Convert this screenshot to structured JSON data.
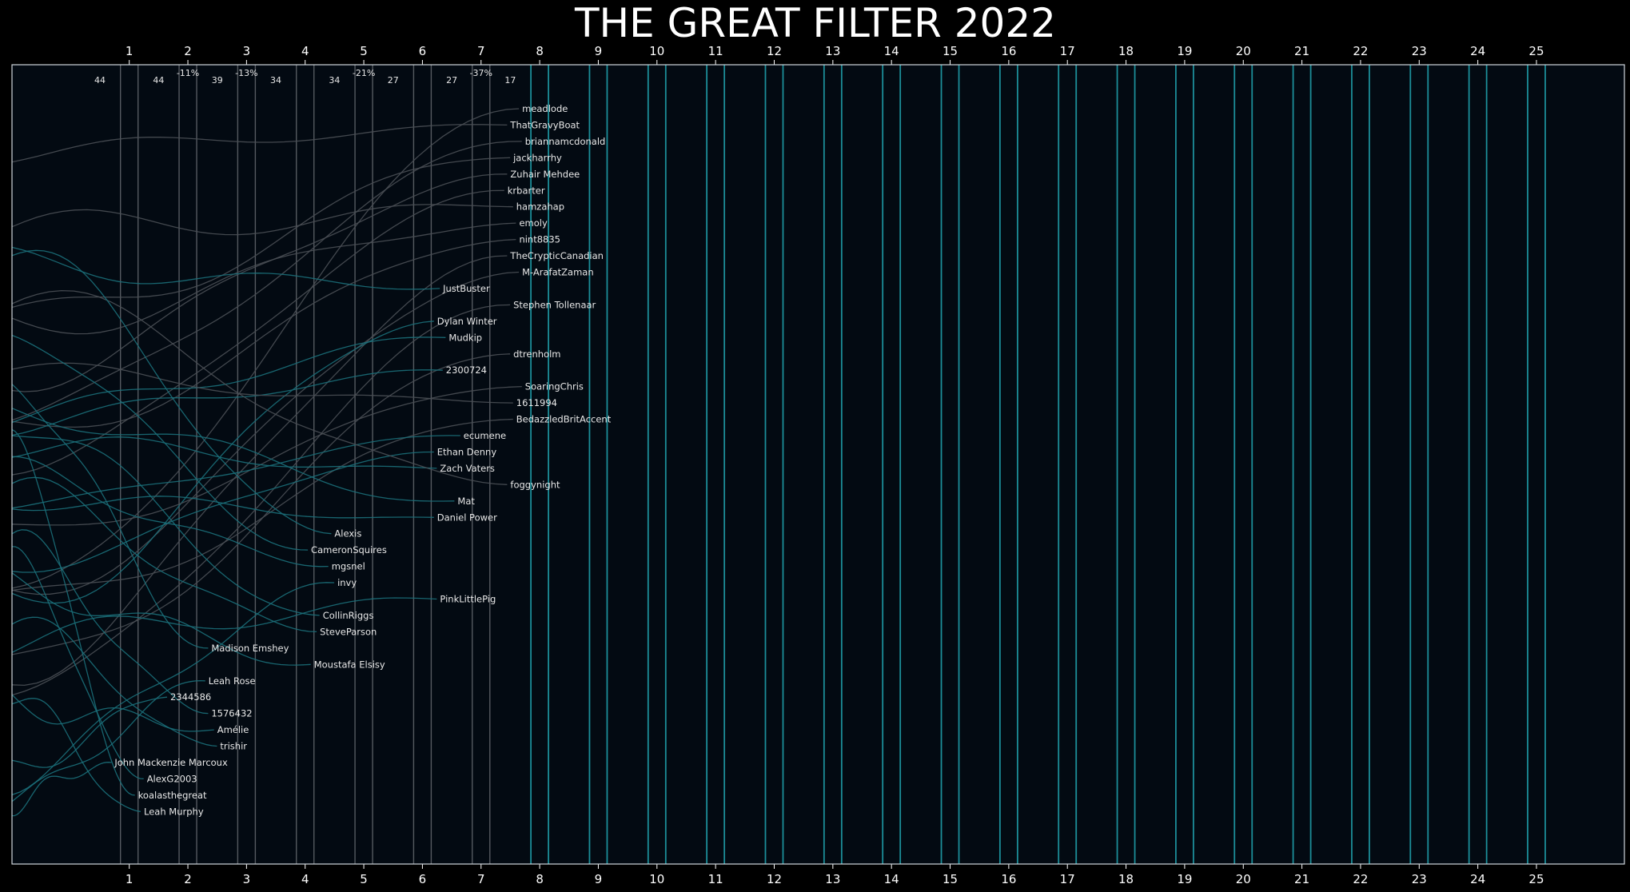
{
  "chart_data": {
    "type": "line",
    "title": "THE GREAT FILTER 2022",
    "xlabel": "",
    "ylabel": "",
    "x_ticks": [
      1,
      2,
      3,
      4,
      5,
      6,
      7,
      8,
      9,
      10,
      11,
      12,
      13,
      14,
      15,
      16,
      17,
      18,
      19,
      20,
      21,
      22,
      23,
      24,
      25
    ],
    "xlim": [
      -1,
      26.5
    ],
    "grid": false,
    "legend": "none",
    "colors": {
      "background": "#000000",
      "plot_background": "#030a12",
      "frame": "#cfd6dc",
      "filled_band_line": "#1c8e99",
      "empty_band_line": "#555a60",
      "strand_active": "#1b6f7a",
      "strand_eliminated": "#4a4f55",
      "label_text": "#e8e8e8"
    },
    "counts": [
      {
        "x": 0.5,
        "label": "44"
      },
      {
        "x": 1.5,
        "label": "44"
      },
      {
        "x": 2.0,
        "label": "-11%"
      },
      {
        "x": 2.5,
        "label": "39"
      },
      {
        "x": 3.0,
        "label": "-13%"
      },
      {
        "x": 3.5,
        "label": "34"
      },
      {
        "x": 4.5,
        "label": "34"
      },
      {
        "x": 5.0,
        "label": "-21%"
      },
      {
        "x": 5.5,
        "label": "27"
      },
      {
        "x": 6.5,
        "label": "27"
      },
      {
        "x": 7.0,
        "label": "-37%"
      },
      {
        "x": 7.5,
        "label": "17"
      }
    ],
    "series": [
      {
        "name": "meadlode",
        "x": 7.7,
        "rank": 1
      },
      {
        "name": "ThatGravyBoat",
        "x": 7.5,
        "rank": 2
      },
      {
        "name": "briannamcdonald",
        "x": 7.75,
        "rank": 3
      },
      {
        "name": "jackharrhy",
        "x": 7.55,
        "rank": 4
      },
      {
        "name": "Zuhair Mehdee",
        "x": 7.5,
        "rank": 5
      },
      {
        "name": "krbarter",
        "x": 7.45,
        "rank": 6
      },
      {
        "name": "hamzahap",
        "x": 7.6,
        "rank": 7
      },
      {
        "name": "emoly",
        "x": 7.65,
        "rank": 8
      },
      {
        "name": "nint8835",
        "x": 7.65,
        "rank": 9
      },
      {
        "name": "TheCrypticCanadian",
        "x": 7.5,
        "rank": 10
      },
      {
        "name": "M-ArafatZaman",
        "x": 7.7,
        "rank": 11
      },
      {
        "name": "JustBuster",
        "x": 6.35,
        "rank": 12
      },
      {
        "name": "Stephen Tollenaar",
        "x": 7.55,
        "rank": 13
      },
      {
        "name": "Dylan Winter",
        "x": 6.25,
        "rank": 14
      },
      {
        "name": "Mudkip",
        "x": 6.45,
        "rank": 15
      },
      {
        "name": "dtrenholm",
        "x": 7.55,
        "rank": 16
      },
      {
        "name": "2300724",
        "x": 6.4,
        "rank": 17
      },
      {
        "name": "SoaringChris",
        "x": 7.75,
        "rank": 18
      },
      {
        "name": "1611994",
        "x": 7.6,
        "rank": 19
      },
      {
        "name": "BedazzledBritAccent",
        "x": 7.6,
        "rank": 20
      },
      {
        "name": "ecumene",
        "x": 6.7,
        "rank": 21
      },
      {
        "name": "Ethan Denny",
        "x": 6.25,
        "rank": 22
      },
      {
        "name": "Zach Vaters",
        "x": 6.3,
        "rank": 23
      },
      {
        "name": "foggynight",
        "x": 7.5,
        "rank": 24
      },
      {
        "name": "Mat",
        "x": 6.6,
        "rank": 25
      },
      {
        "name": "Daniel Power",
        "x": 6.25,
        "rank": 26
      },
      {
        "name": "Alexis",
        "x": 4.5,
        "rank": 27
      },
      {
        "name": "CameronSquires",
        "x": 4.1,
        "rank": 28
      },
      {
        "name": "mgsnel",
        "x": 4.45,
        "rank": 29
      },
      {
        "name": "invy",
        "x": 4.55,
        "rank": 30
      },
      {
        "name": "PinkLittlePig",
        "x": 6.3,
        "rank": 31
      },
      {
        "name": "CollinRiggs",
        "x": 4.3,
        "rank": 32
      },
      {
        "name": "SteveParson",
        "x": 4.25,
        "rank": 33
      },
      {
        "name": "Madison Emshey",
        "x": 2.4,
        "rank": 34
      },
      {
        "name": "Moustafa Elsisy",
        "x": 4.15,
        "rank": 35
      },
      {
        "name": "Leah Rose",
        "x": 2.35,
        "rank": 36
      },
      {
        "name": "2344586",
        "x": 1.7,
        "rank": 37
      },
      {
        "name": "1576432",
        "x": 2.4,
        "rank": 38
      },
      {
        "name": "Amélie",
        "x": 2.5,
        "rank": 39
      },
      {
        "name": "trishir",
        "x": 2.55,
        "rank": 40
      },
      {
        "name": "John Mackenzie Marcoux",
        "x": 0.75,
        "rank": 41
      },
      {
        "name": "AlexG2003",
        "x": 1.3,
        "rank": 42
      },
      {
        "name": "koalasthegreat",
        "x": 1.15,
        "rank": 43
      },
      {
        "name": "Leah Murphy",
        "x": 1.25,
        "rank": 44
      }
    ]
  }
}
